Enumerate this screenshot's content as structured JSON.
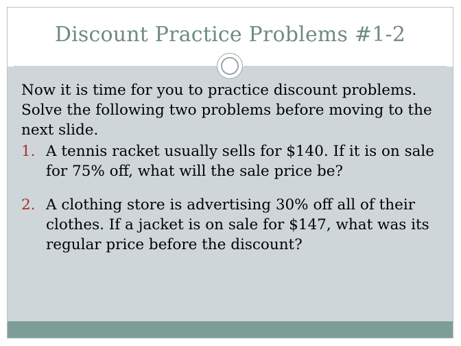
{
  "slide": {
    "title": "Discount Practice Problems #1-2",
    "intro": "Now it is time for you to practice discount problems. Solve the following two problems before moving to the next slide.",
    "problems": [
      {
        "number": "1.",
        "text": "A tennis racket usually sells for $140.  If it is on sale for 75% off, what will the sale price be?"
      },
      {
        "number": "2.",
        "text": "A clothing store is advertising 30% off all of their clothes.  If a jacket is on sale for $147, what was its regular price before the discount?"
      }
    ]
  },
  "colors": {
    "title": "#6f8a82",
    "background": "#cfd6da",
    "number": "#a7312a",
    "footer": "#7c9e96"
  }
}
